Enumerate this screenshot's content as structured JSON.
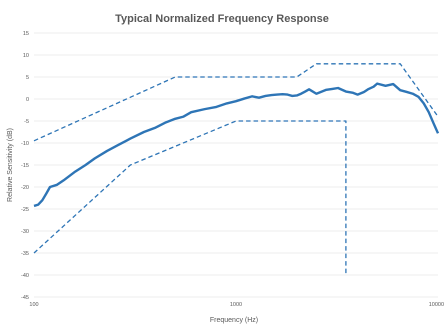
{
  "chart_data": {
    "type": "line",
    "title": "Typical Normalized Frequency Response",
    "xlabel": "Frequency (Hz)",
    "ylabel": "Relative Sensitivity (dB)",
    "x_scale": "log",
    "xlim": [
      100,
      10000
    ],
    "ylim": [
      -45,
      15
    ],
    "x_ticks": [
      100,
      1000,
      10000
    ],
    "x_tick_labels": [
      "100",
      "1000",
      "10000"
    ],
    "y_ticks": [
      15,
      10,
      5,
      0,
      -5,
      -10,
      -15,
      -20,
      -25,
      -30,
      -35,
      -40,
      -45
    ],
    "grid": "horizontal",
    "legend": "none",
    "series": [
      {
        "style": "solid",
        "color": "#2e75b6",
        "x": [
          100,
          105,
          110,
          115,
          120,
          130,
          140,
          160,
          180,
          200,
          230,
          260,
          300,
          350,
          400,
          450,
          500,
          550,
          600,
          700,
          800,
          900,
          1000,
          1100,
          1200,
          1300,
          1400,
          1500,
          1600,
          1700,
          1800,
          1900,
          2000,
          2100,
          2200,
          2300,
          2500,
          2600,
          2800,
          3000,
          3200,
          3500,
          3800,
          4000,
          4300,
          4500,
          4800,
          5000,
          5500,
          6000,
          6500,
          7000,
          7500,
          8000,
          8500,
          9000,
          9500,
          10000
        ],
        "y": [
          -24.3,
          -24.0,
          -23.0,
          -21.5,
          -20.0,
          -19.5,
          -18.5,
          -16.5,
          -15.0,
          -13.5,
          -11.8,
          -10.5,
          -9.0,
          -7.5,
          -6.5,
          -5.3,
          -4.5,
          -4.0,
          -3.0,
          -2.3,
          -1.8,
          -1.0,
          -0.5,
          0.1,
          0.6,
          0.3,
          0.7,
          0.9,
          1.0,
          1.1,
          1.0,
          0.7,
          0.8,
          1.2,
          1.7,
          2.2,
          1.2,
          1.5,
          2.1,
          2.3,
          2.5,
          1.7,
          1.4,
          1.0,
          1.6,
          2.2,
          2.8,
          3.5,
          3.0,
          3.4,
          2.0,
          1.6,
          1.2,
          0.5,
          -1.0,
          -3.0,
          -5.5,
          -7.8
        ]
      },
      {
        "style": "dashed",
        "color": "#2e75b6",
        "x": [
          100,
          500,
          2000,
          2500,
          6500,
          10000
        ],
        "y": [
          -9.5,
          5.0,
          5.0,
          8.0,
          8.0,
          -4.0
        ]
      },
      {
        "style": "dashed",
        "color": "#2e75b6",
        "x": [
          100,
          300,
          1000,
          3500,
          3500
        ],
        "y": [
          -35.0,
          -15.0,
          -5.0,
          -5.0,
          -40.0
        ]
      }
    ]
  }
}
